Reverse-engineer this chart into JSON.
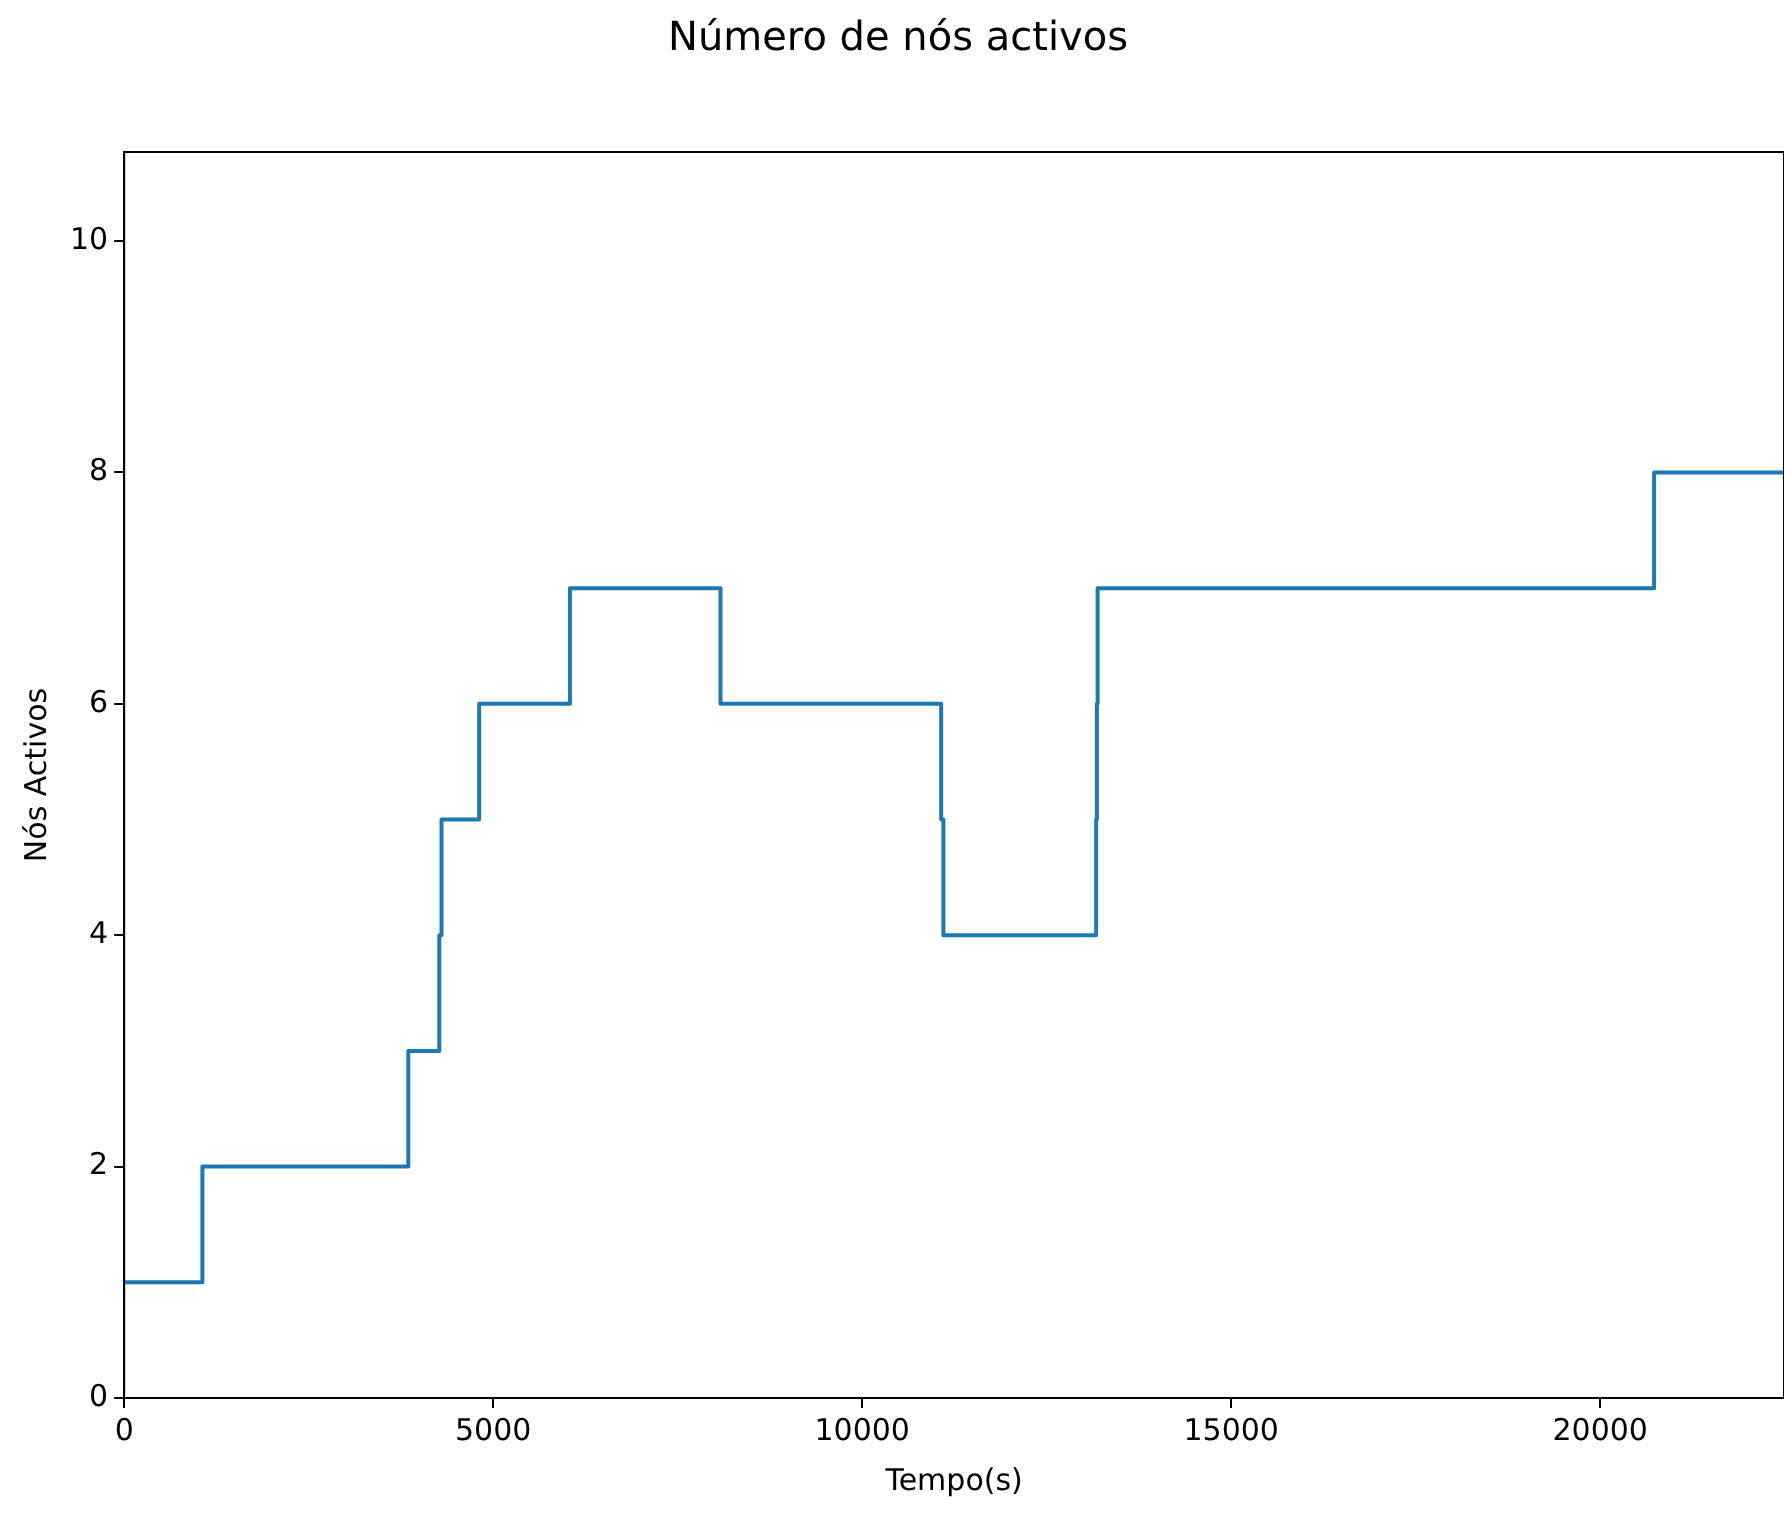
{
  "chart_data": {
    "type": "step",
    "title": "Número de nós activos",
    "xlabel": "Tempo(s)",
    "ylabel": "Nós Activos",
    "xlim": [
      0,
      22490
    ],
    "ylim": [
      0,
      10.77
    ],
    "xticks": [
      0,
      5000,
      10000,
      15000,
      20000
    ],
    "yticks": [
      0,
      2,
      4,
      6,
      8,
      10
    ],
    "grid": false,
    "legend": false,
    "series": [
      {
        "color": "#1f77b4",
        "x": [
          0,
          1060,
          3850,
          4270,
          4300,
          4810,
          6040,
          8080,
          11070,
          11100,
          13170,
          13180,
          13190,
          20730,
          22490
        ],
        "values": [
          1,
          2,
          3,
          4,
          5,
          6,
          7,
          6,
          5,
          4,
          5,
          6,
          7,
          8,
          8
        ]
      }
    ]
  }
}
